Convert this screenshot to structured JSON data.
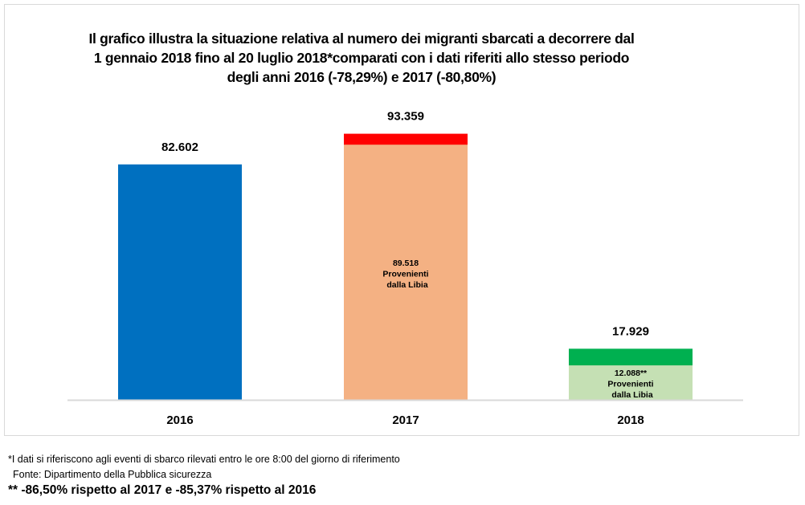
{
  "chart_data": {
    "type": "bar",
    "title_lines": [
      "Il grafico illustra la situazione relativa  al numero dei migranti sbarcati a decorrere dal",
      "1 gennaio 2018 fino al 20 luglio 2018*comparati con i dati riferiti allo stesso periodo",
      "degli anni 2016 (-78,29%) e 2017 (-80,80%)"
    ],
    "categories": [
      "2016",
      "2017",
      "2018"
    ],
    "values": [
      82602,
      93359,
      17929
    ],
    "value_labels": [
      "82.602",
      "93.359",
      "17.929"
    ],
    "libia_values": [
      null,
      89518,
      12088
    ],
    "libia_labels": [
      null,
      [
        "89.518",
        "Provenienti",
        "dalla Libia"
      ],
      [
        "12.088**",
        "Provenienti",
        "dalla Libia"
      ]
    ],
    "colors": {
      "2016": {
        "total": "#0070c0"
      },
      "2017": {
        "total": "#ff0000",
        "libia": "#f4b183"
      },
      "2018": {
        "total": "#00b050",
        "libia": "#c5e0b4"
      },
      "axis": "#d9d9d9"
    },
    "ylim": [
      0,
      100000
    ],
    "xlabel": "",
    "ylabel": "",
    "grid": false,
    "legend": "none"
  },
  "notes": {
    "line1": "*I dati si riferiscono agli eventi di sbarco rilevati entro le ore 8:00 del giorno di riferimento",
    "line2": "Fonte: Dipartimento della Pubblica sicurezza",
    "line3": "** -86,50% rispetto al 2017 e -85,37% rispetto al 2016"
  }
}
